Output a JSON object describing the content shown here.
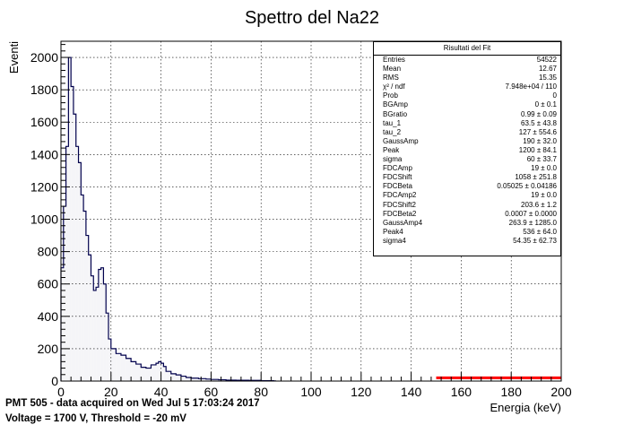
{
  "chart_data": {
    "type": "histogram",
    "title": "Spettro del Na22",
    "xlabel": "Energia (keV)",
    "ylabel": "Eventi",
    "xlim": [
      0,
      200
    ],
    "ylim": [
      0,
      2100
    ],
    "x_ticks": [
      0,
      20,
      40,
      60,
      80,
      100,
      120,
      140,
      160,
      180,
      200
    ],
    "y_ticks": [
      0,
      200,
      400,
      600,
      800,
      1000,
      1200,
      1400,
      1600,
      1800,
      2000
    ],
    "grid": true,
    "histogram_color": "#00004d",
    "fit_color": "#ff0000",
    "spectrum": {
      "x": [
        0,
        1,
        2,
        3,
        4,
        5,
        6,
        7,
        8,
        9,
        10,
        11,
        12,
        13,
        14,
        15,
        16,
        17,
        18,
        19,
        20,
        22,
        24,
        26,
        28,
        30,
        32,
        34,
        36,
        38,
        39,
        40,
        41,
        42,
        44,
        46,
        48,
        50,
        52,
        55,
        58,
        60,
        63,
        66,
        70,
        75,
        80,
        85
      ],
      "y": [
        700,
        1080,
        1450,
        2000,
        1820,
        1650,
        1450,
        1350,
        1150,
        1050,
        900,
        780,
        650,
        560,
        580,
        690,
        700,
        600,
        420,
        260,
        200,
        170,
        160,
        140,
        120,
        105,
        85,
        80,
        100,
        110,
        120,
        110,
        90,
        60,
        45,
        38,
        30,
        22,
        18,
        15,
        12,
        10,
        8,
        6,
        5,
        4,
        2,
        1
      ]
    },
    "fit_line": {
      "x": [
        150,
        200
      ],
      "y": [
        20,
        20
      ]
    }
  },
  "stats": {
    "title": "Risultati del Fit",
    "rows": [
      {
        "name": "Entries",
        "value": "54522"
      },
      {
        "name": "Mean",
        "value": "12.67"
      },
      {
        "name": "RMS",
        "value": "15.35"
      },
      {
        "name": "χ² / ndf",
        "value": "7.948e+04 / 110"
      },
      {
        "name": "Prob",
        "value": "0"
      },
      {
        "name": "BGAmp",
        "value": "0 ± 0.1"
      },
      {
        "name": "BGratio",
        "value": "0.99 ± 0.09"
      },
      {
        "name": "tau_1",
        "value": "63.5 ± 43.8"
      },
      {
        "name": "tau_2",
        "value": "127 ± 554.6"
      },
      {
        "name": "GaussAmp",
        "value": "190 ± 32.0"
      },
      {
        "name": "Peak",
        "value": "1200 ± 84.1"
      },
      {
        "name": "sigma",
        "value": "60 ± 33.7"
      },
      {
        "name": "FDCAmp",
        "value": "19 ± 0.0"
      },
      {
        "name": "FDCShift",
        "value": "1058 ± 251.8"
      },
      {
        "name": "FDCBeta",
        "value": "0.05025 ± 0.04186"
      },
      {
        "name": "FDCAmp2",
        "value": "19 ± 0.0"
      },
      {
        "name": "FDCShift2",
        "value": "203.6 ± 1.2"
      },
      {
        "name": "FDCBeta2",
        "value": "0.0007 ± 0.0000"
      },
      {
        "name": "GaussAmp4",
        "value": "263.9 ± 1285.0"
      },
      {
        "name": "Peak4",
        "value": "536 ± 64.0"
      },
      {
        "name": "sigma4",
        "value": "54.35 ± 62.73"
      }
    ]
  },
  "captions": {
    "line1": "PMT 505 - data acquired on Wed Jul  5 17:03:24 2017",
    "line2": "Voltage = 1700 V, Threshold = -20 mV"
  }
}
